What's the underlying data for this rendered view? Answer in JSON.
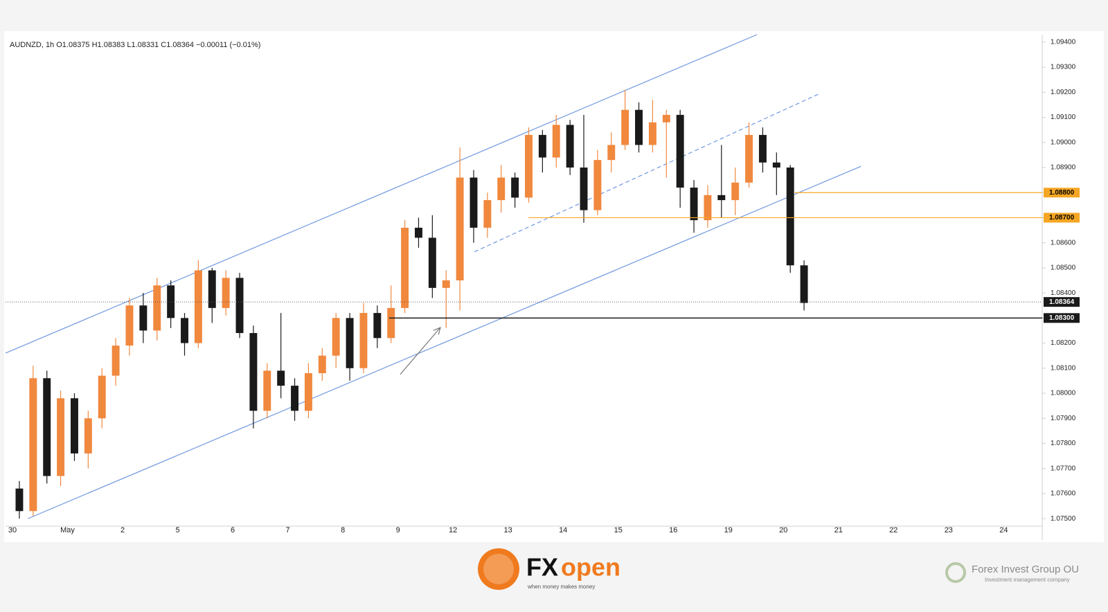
{
  "chart_data": {
    "type": "candlestick",
    "header": "AUDNZD, 1h  O1.08375  H1.08383  L1.08331  C1.08364  −0.00011 (−0.01%)",
    "up_color": "#f0883e",
    "down_color": "#1a1a1a",
    "xlim": [
      -0.126,
      18.7
    ],
    "xticks": [
      {
        "value": 0,
        "label": "30"
      },
      {
        "value": 1,
        "label": "May"
      },
      {
        "value": 2,
        "label": "2"
      },
      {
        "value": 3,
        "label": "5"
      },
      {
        "value": 4,
        "label": "6"
      },
      {
        "value": 5,
        "label": "7"
      },
      {
        "value": 6,
        "label": "8"
      },
      {
        "value": 7,
        "label": "9"
      },
      {
        "value": 8,
        "label": "12"
      },
      {
        "value": 9,
        "label": "13"
      },
      {
        "value": 10,
        "label": "14"
      },
      {
        "value": 11,
        "label": "15"
      },
      {
        "value": 12,
        "label": "16"
      },
      {
        "value": 13,
        "label": "19"
      },
      {
        "value": 14,
        "label": "20"
      },
      {
        "value": 15,
        "label": "21"
      },
      {
        "value": 16,
        "label": "22"
      },
      {
        "value": 17,
        "label": "23"
      },
      {
        "value": 18,
        "label": "24"
      }
    ],
    "ylim": [
      1.0747,
      1.0943
    ],
    "yticks": [
      {
        "value": 1.094,
        "label": "1.09400"
      },
      {
        "value": 1.093,
        "label": "1.09300"
      },
      {
        "value": 1.092,
        "label": "1.09200"
      },
      {
        "value": 1.091,
        "label": "1.09100"
      },
      {
        "value": 1.09,
        "label": "1.09000"
      },
      {
        "value": 1.089,
        "label": "1.08900"
      },
      {
        "value": 1.088,
        "label": "1.08800"
      },
      {
        "value": 1.087,
        "label": "1.08700"
      },
      {
        "value": 1.086,
        "label": "1.08600"
      },
      {
        "value": 1.085,
        "label": "1.08500"
      },
      {
        "value": 1.084,
        "label": "1.08400"
      },
      {
        "value": 1.083,
        "label": "1.08300"
      },
      {
        "value": 1.082,
        "label": "1.08200"
      },
      {
        "value": 1.081,
        "label": "1.08100"
      },
      {
        "value": 1.08,
        "label": "1.08000"
      },
      {
        "value": 1.079,
        "label": "1.07900"
      },
      {
        "value": 1.078,
        "label": "1.07800"
      },
      {
        "value": 1.077,
        "label": "1.07700"
      },
      {
        "value": 1.076,
        "label": "1.07600"
      },
      {
        "value": 1.075,
        "label": "1.07500"
      }
    ],
    "x": [
      0.125,
      0.375,
      0.625,
      0.875,
      1.125,
      1.375,
      1.625,
      1.875,
      2.125,
      2.375,
      2.625,
      2.875,
      3.125,
      3.375,
      3.625,
      3.875,
      4.125,
      4.375,
      4.625,
      4.875,
      5.125,
      5.375,
      5.625,
      5.875,
      6.125,
      6.375,
      6.625,
      6.875,
      7.125,
      7.375,
      7.625,
      7.875,
      8.125,
      8.375,
      8.625,
      8.875,
      9.125,
      9.375,
      9.625,
      9.875,
      10.125,
      10.375,
      10.625,
      10.875,
      11.125,
      11.375,
      11.625,
      11.875,
      12.125,
      12.375,
      12.625,
      12.875,
      13.125,
      13.375,
      13.625,
      13.875,
      14.125,
      14.375
    ],
    "ohlc": [
      [
        1.0762,
        1.0765,
        1.075,
        1.0753
      ],
      [
        1.0753,
        1.0811,
        1.0751,
        1.0806
      ],
      [
        1.0806,
        1.0809,
        1.0764,
        1.0767
      ],
      [
        1.0767,
        1.0801,
        1.0763,
        1.0798
      ],
      [
        1.0798,
        1.08,
        1.0773,
        1.0776
      ],
      [
        1.0776,
        1.0793,
        1.077,
        1.079
      ],
      [
        1.079,
        1.081,
        1.0786,
        1.0807
      ],
      [
        1.0807,
        1.0822,
        1.0803,
        1.0819
      ],
      [
        1.0819,
        1.0838,
        1.0815,
        1.0835
      ],
      [
        1.0835,
        1.084,
        1.082,
        1.0825
      ],
      [
        1.0825,
        1.0846,
        1.0821,
        1.0843
      ],
      [
        1.0843,
        1.0845,
        1.0826,
        1.083
      ],
      [
        1.083,
        1.0832,
        1.0815,
        1.082
      ],
      [
        1.082,
        1.0853,
        1.0818,
        1.0849
      ],
      [
        1.0849,
        1.085,
        1.0828,
        1.0834
      ],
      [
        1.0834,
        1.0849,
        1.0831,
        1.0846
      ],
      [
        1.0846,
        1.0848,
        1.0822,
        1.0824
      ],
      [
        1.0824,
        1.0827,
        1.0786,
        1.0793
      ],
      [
        1.0793,
        1.0812,
        1.079,
        1.0809
      ],
      [
        1.0809,
        1.0832,
        1.0798,
        1.0803
      ],
      [
        1.0803,
        1.0806,
        1.0789,
        1.0793
      ],
      [
        1.0793,
        1.0812,
        1.079,
        1.0808
      ],
      [
        1.0808,
        1.0818,
        1.0805,
        1.0815
      ],
      [
        1.0815,
        1.0832,
        1.081,
        1.083
      ],
      [
        1.083,
        1.0832,
        1.0805,
        1.081
      ],
      [
        1.081,
        1.0836,
        1.0808,
        1.0832
      ],
      [
        1.0832,
        1.0835,
        1.0818,
        1.0822
      ],
      [
        1.0822,
        1.0843,
        1.082,
        1.0834
      ],
      [
        1.0834,
        1.0869,
        1.0832,
        1.0866
      ],
      [
        1.0866,
        1.087,
        1.0858,
        1.0862
      ],
      [
        1.0862,
        1.0871,
        1.0838,
        1.0842
      ],
      [
        1.0842,
        1.0849,
        1.0826,
        1.0845
      ],
      [
        1.0845,
        1.0898,
        1.0833,
        1.0886
      ],
      [
        1.0886,
        1.0889,
        1.086,
        1.0866
      ],
      [
        1.0866,
        1.088,
        1.0862,
        1.0877
      ],
      [
        1.0877,
        1.0891,
        1.0872,
        1.0886
      ],
      [
        1.0886,
        1.0888,
        1.0874,
        1.0878
      ],
      [
        1.0878,
        1.0906,
        1.0876,
        1.0903
      ],
      [
        1.0903,
        1.0905,
        1.0888,
        1.0894
      ],
      [
        1.0894,
        1.0911,
        1.089,
        1.0907
      ],
      [
        1.0907,
        1.0909,
        1.0887,
        1.089
      ],
      [
        1.089,
        1.0911,
        1.0868,
        1.0873
      ],
      [
        1.0873,
        1.0897,
        1.0871,
        1.0893
      ],
      [
        1.0893,
        1.0904,
        1.0888,
        1.0899
      ],
      [
        1.0899,
        1.0921,
        1.0897,
        1.0913
      ],
      [
        1.0913,
        1.0916,
        1.0896,
        1.0899
      ],
      [
        1.0899,
        1.0917,
        1.0896,
        1.0908
      ],
      [
        1.0908,
        1.0913,
        1.0886,
        1.0911
      ],
      [
        1.0911,
        1.0913,
        1.0874,
        1.0882
      ],
      [
        1.0882,
        1.0885,
        1.0864,
        1.0869
      ],
      [
        1.0869,
        1.0883,
        1.0866,
        1.0879
      ],
      [
        1.0879,
        1.0899,
        1.087,
        1.0877
      ],
      [
        1.0877,
        1.089,
        1.0871,
        1.0884
      ],
      [
        1.0884,
        1.0908,
        1.0882,
        1.0903
      ],
      [
        1.0903,
        1.0906,
        1.0888,
        1.0892
      ],
      [
        1.0892,
        1.0896,
        1.0879,
        1.089
      ],
      [
        1.089,
        1.0891,
        1.0848,
        1.0851
      ],
      [
        1.0851,
        1.0853,
        1.0833,
        1.0836
      ]
    ],
    "trendlines": [
      {
        "x": [
          -0.126,
          13.52
        ],
        "y": [
          1.0816,
          1.0943
        ],
        "color": "#6f97e0"
      },
      {
        "x": [
          0.28,
          15.41
        ],
        "y": [
          1.075,
          1.08905
        ],
        "color": "#6f97e0"
      },
      {
        "x": [
          8.39,
          14.68
        ],
        "y": [
          1.08564,
          1.09197
        ],
        "color": "#6f97e0",
        "dash": true
      },
      {
        "x": [
          7.04,
          7.77
        ],
        "y": [
          1.08075,
          1.08262
        ],
        "color": "#777777",
        "arrow": true
      }
    ],
    "levels": [
      {
        "value": 1.088,
        "label": "1.08800",
        "from": 14.21,
        "color": "#f5a623",
        "text_color": "#000000"
      },
      {
        "value": 1.087,
        "label": "1.08700",
        "from": 9.37,
        "color": "#f5a623",
        "text_color": "#000000"
      },
      {
        "value": 1.083,
        "label": "1.08300",
        "from": 6.84,
        "color": "#1a1a1a",
        "text_color": "#ffffff"
      }
    ],
    "last_price": {
      "value": 1.08364,
      "label": "1.08364",
      "color": "#1a1a1a"
    }
  },
  "branding": {
    "logo_fx": "FX",
    "logo_open": "open",
    "tagline": "when money makes money",
    "company": "Forex Invest Group OU",
    "company_sub": "Investment management company"
  }
}
